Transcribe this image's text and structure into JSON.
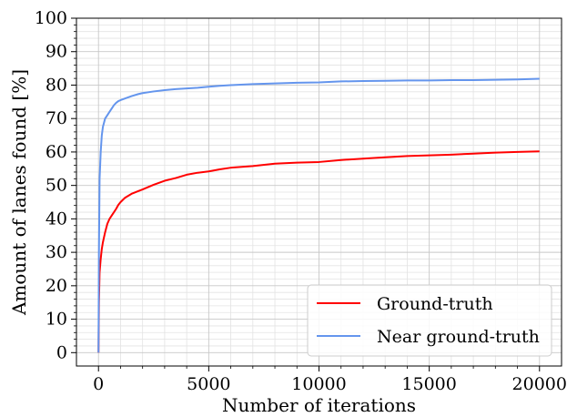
{
  "chart_data": {
    "type": "line",
    "title": "",
    "xlabel": "Number of iterations",
    "ylabel": "Amount of lanes found [%]",
    "xlim": [
      -1000,
      21000
    ],
    "ylim": [
      -4,
      100
    ],
    "x_ticks": [
      0,
      5000,
      10000,
      15000,
      20000
    ],
    "y_ticks": [
      0,
      10,
      20,
      30,
      40,
      50,
      60,
      70,
      80,
      90,
      100
    ],
    "grid": true,
    "legend_position": "lower-right",
    "series": [
      {
        "name": "Ground-truth",
        "color": "#ff0000",
        "x": [
          0,
          20,
          50,
          100,
          150,
          200,
          300,
          400,
          500,
          600,
          700,
          800,
          900,
          1000,
          1200,
          1500,
          1800,
          2000,
          2500,
          3000,
          3500,
          4000,
          4500,
          5000,
          5500,
          6000,
          7000,
          8000,
          9000,
          10000,
          11000,
          12000,
          13000,
          14000,
          15000,
          16000,
          17000,
          18000,
          19000,
          20000
        ],
        "values": [
          0,
          15,
          24,
          28,
          31,
          33,
          36,
          38.5,
          40,
          41,
          42,
          43,
          44.2,
          45,
          46.3,
          47.5,
          48.3,
          48.8,
          50.2,
          51.4,
          52.2,
          53.2,
          53.8,
          54.2,
          54.8,
          55.3,
          55.8,
          56.5,
          56.8,
          57,
          57.6,
          58,
          58.4,
          58.8,
          59,
          59.2,
          59.5,
          59.8,
          60,
          60.2
        ]
      },
      {
        "name": "Near ground-truth",
        "color": "#6495ed",
        "x": [
          0,
          20,
          50,
          100,
          150,
          200,
          300,
          400,
          500,
          600,
          700,
          800,
          900,
          1000,
          1200,
          1500,
          1800,
          2000,
          2500,
          3000,
          3500,
          4000,
          4500,
          5000,
          5500,
          6000,
          7000,
          8000,
          9000,
          10000,
          11000,
          12000,
          13000,
          14000,
          15000,
          16000,
          17000,
          18000,
          19000,
          20000
        ],
        "values": [
          0,
          30,
          52,
          60,
          65,
          67.5,
          70,
          71,
          72,
          73,
          74,
          74.7,
          75.2,
          75.5,
          76,
          76.7,
          77.3,
          77.6,
          78.1,
          78.5,
          78.8,
          79,
          79.2,
          79.5,
          79.8,
          80,
          80.3,
          80.5,
          80.7,
          80.8,
          81.1,
          81.2,
          81.3,
          81.4,
          81.4,
          81.5,
          81.5,
          81.6,
          81.7,
          81.9
        ]
      }
    ]
  }
}
